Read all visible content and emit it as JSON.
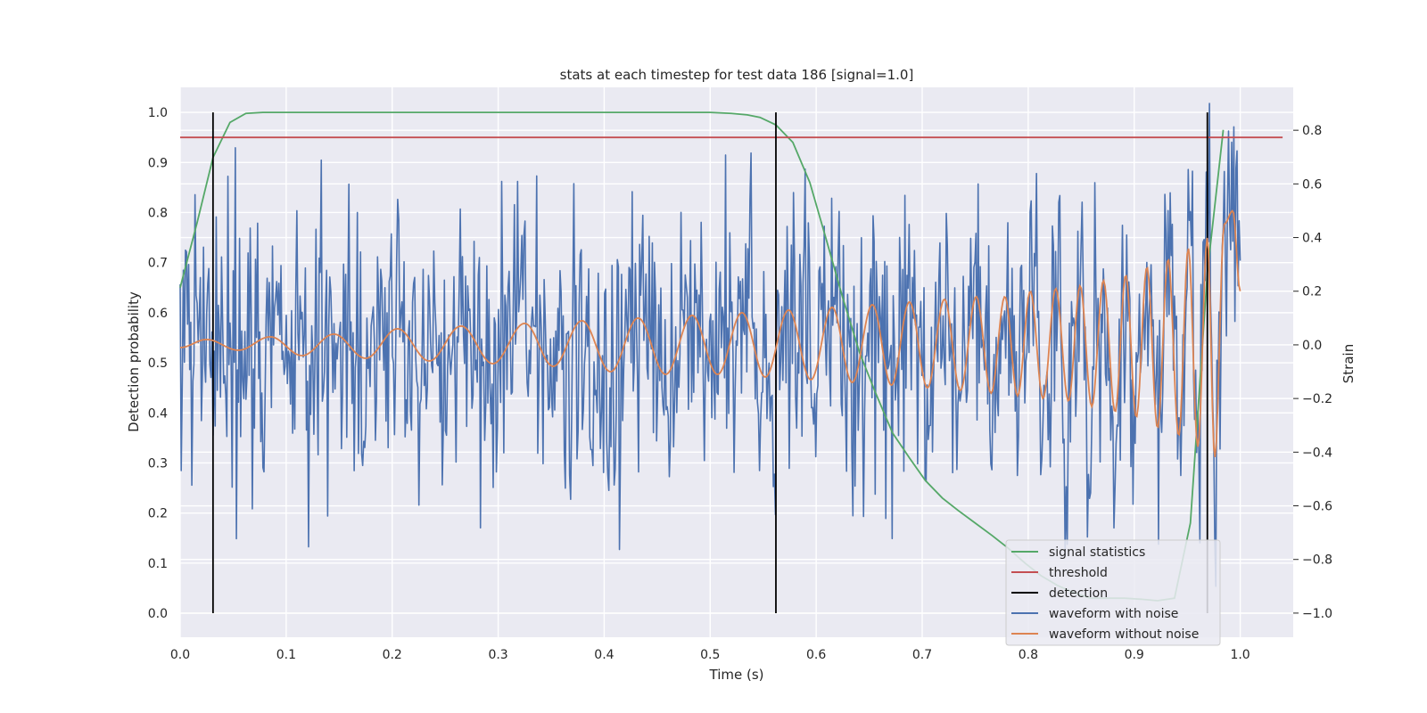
{
  "chart_data": {
    "type": "line",
    "title": "stats at each timestep for test data 186 [signal=1.0]",
    "xlabel": "Time (s)",
    "ylabel": "Detection probability",
    "ylabel_right": "Strain",
    "xlim": [
      0.0,
      1.05
    ],
    "ylim": [
      -0.048,
      1.05
    ],
    "ylim_right": [
      -1.09,
      0.96
    ],
    "x_ticks": [
      "0.0",
      "0.1",
      "0.2",
      "0.3",
      "0.4",
      "0.5",
      "0.6",
      "0.7",
      "0.8",
      "0.9",
      "1.0"
    ],
    "y_ticks": [
      "0.0",
      "0.1",
      "0.2",
      "0.3",
      "0.4",
      "0.5",
      "0.6",
      "0.7",
      "0.8",
      "0.9",
      "1.0"
    ],
    "y_right_ticks": [
      "−1.0",
      "−0.8",
      "−0.6",
      "−0.4",
      "−0.2",
      "0.0",
      "0.2",
      "0.4",
      "0.6",
      "0.8"
    ],
    "grid": true,
    "legend_position": "lower-right",
    "colors": {
      "background": "#eaeaf2",
      "grid": "#ffffff",
      "signal": "#55a868",
      "threshold": "#c44e52",
      "detection": "#000000",
      "noisy": "#4c72b0",
      "clean": "#dd8452"
    },
    "series": [
      {
        "name": "signal statistics",
        "axis": "left",
        "x": [
          0.0,
          0.016,
          0.031,
          0.047,
          0.062,
          0.078,
          0.094,
          0.125,
          0.2,
          0.3,
          0.4,
          0.5,
          0.52,
          0.535,
          0.547,
          0.562,
          0.578,
          0.594,
          0.609,
          0.625,
          0.641,
          0.656,
          0.672,
          0.688,
          0.703,
          0.719,
          0.734,
          0.75,
          0.766,
          0.781,
          0.797,
          0.812,
          0.828,
          0.844,
          0.859,
          0.875,
          0.891,
          0.906,
          0.922,
          0.938,
          0.953,
          0.969,
          0.984
        ],
        "values": [
          0.65,
          0.78,
          0.91,
          0.98,
          0.998,
          1.0,
          1.0,
          1.0,
          1.0,
          1.0,
          1.0,
          1.0,
          0.998,
          0.995,
          0.99,
          0.975,
          0.94,
          0.86,
          0.75,
          0.63,
          0.52,
          0.44,
          0.36,
          0.31,
          0.265,
          0.23,
          0.205,
          0.18,
          0.155,
          0.13,
          0.1,
          0.075,
          0.055,
          0.04,
          0.03,
          0.03,
          0.03,
          0.028,
          0.025,
          0.03,
          0.18,
          0.68,
          0.965
        ]
      },
      {
        "name": "threshold",
        "axis": "left",
        "x": [
          0.0,
          1.04
        ],
        "values": [
          0.95,
          0.95
        ]
      },
      {
        "name": "detection",
        "axis": "left",
        "x": [
          0.031,
          0.562,
          0.969
        ],
        "values": [
          1.0,
          1.0,
          1.0
        ]
      },
      {
        "name": "waveform with noise",
        "axis": "right",
        "x_start": 0.0,
        "x_end": 1.0,
        "samples": 1000,
        "noise_sd": 0.26,
        "max": 0.9,
        "min": -0.9
      },
      {
        "name": "waveform without noise",
        "axis": "right",
        "x": [
          0.0,
          0.025,
          0.055,
          0.085,
          0.115,
          0.145,
          0.175,
          0.205,
          0.235,
          0.265,
          0.295,
          0.325,
          0.352,
          0.379,
          0.406,
          0.432,
          0.458,
          0.483,
          0.507,
          0.53,
          0.552,
          0.574,
          0.595,
          0.615,
          0.634,
          0.653,
          0.671,
          0.688,
          0.705,
          0.721,
          0.736,
          0.751,
          0.765,
          0.778,
          0.79,
          0.802,
          0.814,
          0.826,
          0.838,
          0.849,
          0.86,
          0.871,
          0.882,
          0.892,
          0.902,
          0.912,
          0.922,
          0.932,
          0.942,
          0.951,
          0.96,
          0.969,
          0.976,
          0.985,
          0.993,
          1.0
        ],
        "values": [
          -0.01,
          0.02,
          -0.02,
          0.03,
          -0.04,
          0.04,
          -0.05,
          0.06,
          -0.06,
          0.07,
          -0.07,
          0.08,
          -0.08,
          0.09,
          -0.1,
          0.1,
          -0.11,
          0.11,
          -0.11,
          0.12,
          -0.12,
          0.13,
          -0.13,
          0.14,
          -0.14,
          0.15,
          -0.15,
          0.16,
          -0.16,
          0.17,
          -0.17,
          0.18,
          -0.18,
          0.18,
          -0.19,
          0.2,
          -0.2,
          0.21,
          -0.21,
          0.22,
          -0.23,
          0.24,
          -0.25,
          0.26,
          -0.27,
          0.29,
          -0.31,
          0.32,
          -0.34,
          0.36,
          -0.38,
          0.4,
          -0.42,
          0.45,
          0.5,
          0.2
        ]
      }
    ]
  }
}
